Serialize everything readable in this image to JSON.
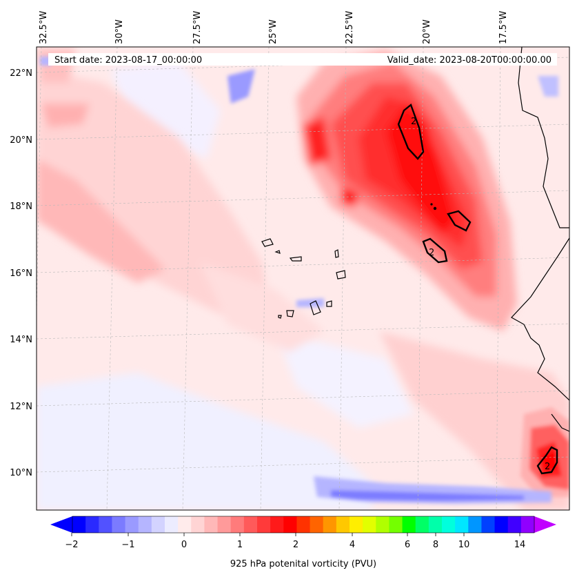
{
  "map": {
    "top_lon_labels": [
      "32.5°W",
      "30°W",
      "27.5°W",
      "25°W",
      "22.5°W",
      "20°W",
      "17.5°W"
    ],
    "left_lat_labels": [
      "22°N",
      "20°N",
      "18°N",
      "16°N",
      "14°N",
      "12°N",
      "10°N"
    ],
    "start_date_text": "Start date: 2023-08-17_00:00:00",
    "valid_date_text": "Valid_date: 2023-08-20T00:00:00.00",
    "contour_labels": [
      "2",
      "2",
      "2"
    ]
  },
  "colorbar": {
    "tick_labels": [
      "−2",
      "−1",
      "0",
      "1",
      "2",
      "4",
      "6",
      "8",
      "10",
      "14"
    ],
    "label": "925 hPa potenital vorticity (PVU)",
    "colors": [
      "#0000ff",
      "#2a2aff",
      "#5252ff",
      "#7b7bff",
      "#9a9aff",
      "#b5b5ff",
      "#d3d3ff",
      "#ececff",
      "#ffebeb",
      "#ffd4d4",
      "#ffb8b8",
      "#ff9a9a",
      "#ff7b7b",
      "#ff5a5a",
      "#ff3a3a",
      "#ff1a1a",
      "#ff0000",
      "#ff3200",
      "#ff6400",
      "#ff9600",
      "#ffc800",
      "#ffee00",
      "#e2ff00",
      "#b0ff00",
      "#74ff00",
      "#00ff00",
      "#00ff66",
      "#00ffaa",
      "#00ffdd",
      "#00e6ff",
      "#0096ff",
      "#0040ff",
      "#0000ff",
      "#4000ff",
      "#9000ff"
    ],
    "extend_low_color": "#0000ff",
    "extend_high_color": "#c000ff"
  }
}
